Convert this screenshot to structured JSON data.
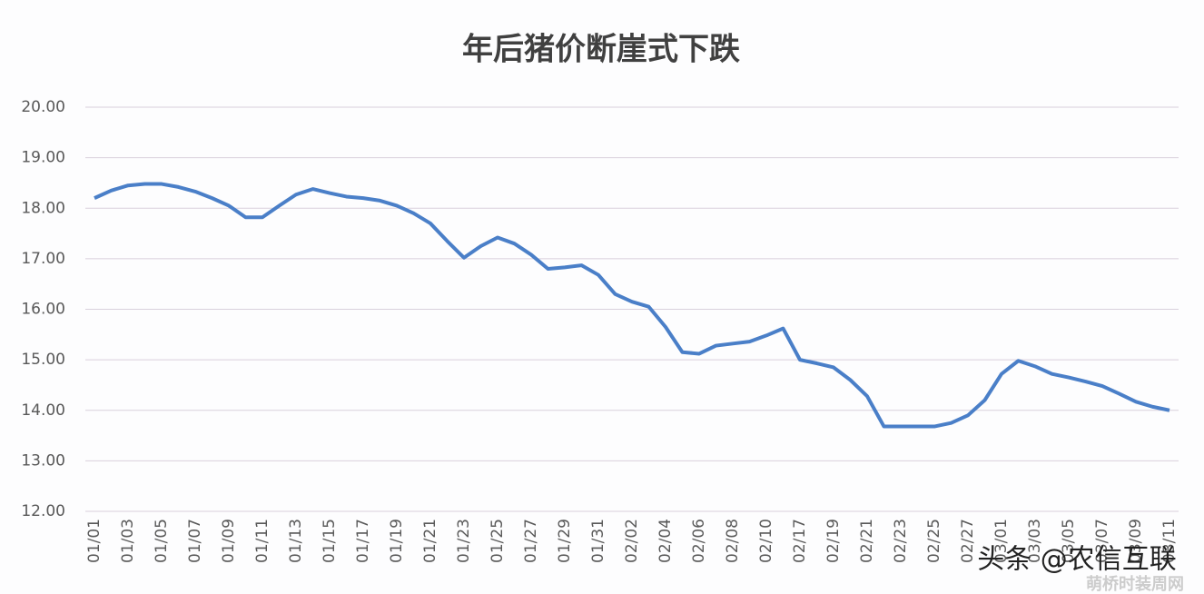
{
  "chart_data": {
    "type": "line",
    "title": "年后猪价断崖式下跌",
    "categories": [
      "01/01",
      null,
      "01/03",
      null,
      "01/05",
      null,
      "01/07",
      null,
      "01/09",
      null,
      "01/11",
      null,
      "01/13",
      null,
      "01/15",
      null,
      "01/17",
      null,
      "01/19",
      null,
      "01/21",
      null,
      "01/23",
      null,
      "01/25",
      null,
      "01/27",
      null,
      "01/29",
      null,
      "01/31",
      null,
      "02/02",
      null,
      "02/04",
      null,
      "02/06",
      null,
      "02/08",
      null,
      "02/10",
      null,
      "02/17",
      null,
      "02/19",
      null,
      "02/21",
      null,
      "02/23",
      null,
      "02/25",
      null,
      "02/27",
      null,
      "03/01",
      null,
      "03/03",
      null,
      "03/05",
      null,
      "03/07",
      null,
      "03/09",
      null,
      "03/11"
    ],
    "series": [
      {
        "color": "#4a7fc8",
        "values": [
          18.2,
          18.35,
          18.45,
          18.48,
          18.48,
          18.42,
          18.33,
          18.2,
          18.05,
          17.82,
          17.82,
          18.05,
          18.27,
          18.38,
          18.3,
          18.23,
          18.2,
          18.15,
          18.05,
          17.9,
          17.7,
          17.35,
          17.02,
          17.25,
          17.42,
          17.3,
          17.08,
          16.8,
          16.83,
          16.87,
          16.68,
          16.3,
          16.15,
          16.05,
          15.65,
          15.15,
          15.12,
          15.28,
          15.32,
          15.36,
          15.48,
          15.62,
          15.0,
          14.93,
          14.85,
          14.6,
          14.28,
          13.68,
          13.68,
          13.68,
          13.68,
          13.75,
          13.9,
          14.2,
          14.72,
          14.98,
          14.87,
          14.72,
          14.65,
          14.57,
          14.48,
          14.33,
          14.17,
          14.07,
          14.0
        ]
      }
    ],
    "ylim": [
      12,
      20
    ],
    "yticks": [
      {
        "value": 12,
        "label": "12.00"
      },
      {
        "value": 13,
        "label": "13.00"
      },
      {
        "value": 14,
        "label": "14.00"
      },
      {
        "value": 15,
        "label": "15.00"
      },
      {
        "value": 16,
        "label": "16.00"
      },
      {
        "value": 17,
        "label": "17.00"
      },
      {
        "value": 18,
        "label": "18.00"
      },
      {
        "value": 19,
        "label": "19.00"
      },
      {
        "value": 20,
        "label": "20.00"
      }
    ],
    "grid": true,
    "watermark": "头条 @农信互联",
    "footer_watermark": "萌桥时装周网"
  }
}
